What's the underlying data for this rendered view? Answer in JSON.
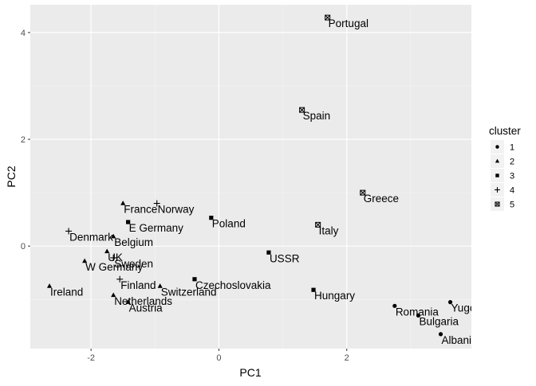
{
  "chart_data": {
    "type": "scatter",
    "xlabel": "PC1",
    "ylabel": "PC2",
    "xlim": [
      -2.95,
      3.95
    ],
    "ylim": [
      -1.92,
      4.52
    ],
    "x_ticks": [
      -2,
      0,
      2
    ],
    "y_ticks": [
      0,
      2,
      4
    ],
    "grid": true,
    "legend": {
      "title": "cluster",
      "position": "right",
      "entries": [
        "1",
        "2",
        "3",
        "4",
        "5"
      ]
    },
    "points": [
      {
        "label": "Portugal",
        "x": 1.7,
        "y": 4.28,
        "cluster": "5"
      },
      {
        "label": "Spain",
        "x": 1.3,
        "y": 2.55,
        "cluster": "5"
      },
      {
        "label": "Greece",
        "x": 2.25,
        "y": 1.0,
        "cluster": "5"
      },
      {
        "label": "Italy",
        "x": 1.55,
        "y": 0.4,
        "cluster": "5"
      },
      {
        "label": "Norway",
        "x": -0.97,
        "y": 0.8,
        "cluster": "4"
      },
      {
        "label": "Denmark",
        "x": -2.35,
        "y": 0.28,
        "cluster": "4"
      },
      {
        "label": "Sweden",
        "x": -1.65,
        "y": -0.22,
        "cluster": "4"
      },
      {
        "label": "Finland",
        "x": -1.55,
        "y": -0.62,
        "cluster": "4"
      },
      {
        "label": "E Germany",
        "x": -1.42,
        "y": 0.45,
        "cluster": "3"
      },
      {
        "label": "Poland",
        "x": -0.12,
        "y": 0.53,
        "cluster": "3"
      },
      {
        "label": "USSR",
        "x": 0.78,
        "y": -0.12,
        "cluster": "3"
      },
      {
        "label": "Czechoslovakia",
        "x": -0.38,
        "y": -0.62,
        "cluster": "3"
      },
      {
        "label": "Hungary",
        "x": 1.48,
        "y": -0.82,
        "cluster": "3"
      },
      {
        "label": "France",
        "x": -1.5,
        "y": 0.8,
        "cluster": "2"
      },
      {
        "label": "Belgium",
        "x": -1.65,
        "y": 0.18,
        "cluster": "2"
      },
      {
        "label": "UK",
        "x": -1.75,
        "y": -0.1,
        "cluster": "2"
      },
      {
        "label": "W Germany",
        "x": -2.1,
        "y": -0.28,
        "cluster": "2"
      },
      {
        "label": "Ireland",
        "x": -2.65,
        "y": -0.75,
        "cluster": "2"
      },
      {
        "label": "Switzerland",
        "x": -0.92,
        "y": -0.75,
        "cluster": "2"
      },
      {
        "label": "Netherlands",
        "x": -1.65,
        "y": -0.92,
        "cluster": "2"
      },
      {
        "label": "Austria",
        "x": -1.42,
        "y": -1.05,
        "cluster": "2"
      },
      {
        "label": "Romania",
        "x": 2.75,
        "y": -1.12,
        "cluster": "1"
      },
      {
        "label": "Yugoslavia",
        "x": 3.62,
        "y": -1.05,
        "cluster": "1"
      },
      {
        "label": "Bulgaria",
        "x": 3.12,
        "y": -1.3,
        "cluster": "1"
      },
      {
        "label": "Albania",
        "x": 3.47,
        "y": -1.65,
        "cluster": "1"
      }
    ]
  }
}
